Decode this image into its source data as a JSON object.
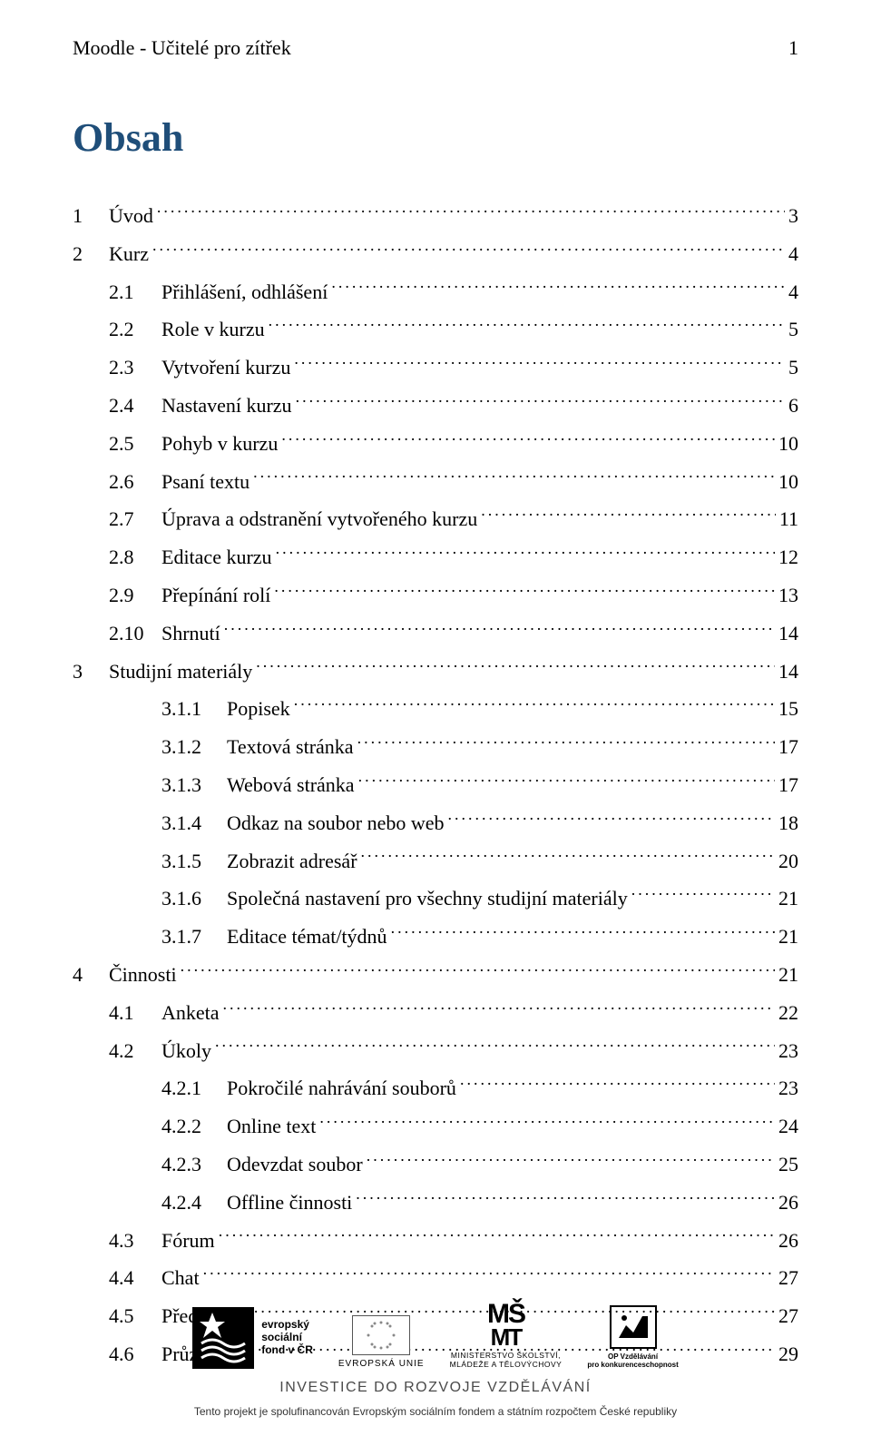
{
  "header": {
    "title": "Moodle - Učitelé pro zítřek",
    "page_number": "1"
  },
  "main_title": "Obsah",
  "toc": [
    {
      "level": 0,
      "num": "1",
      "label": "Úvod",
      "page": "3"
    },
    {
      "level": 0,
      "num": "2",
      "label": "Kurz",
      "page": "4"
    },
    {
      "level": 1,
      "num": "2.1",
      "label": "Přihlášení, odhlášení",
      "page": "4"
    },
    {
      "level": 1,
      "num": "2.2",
      "label": "Role v kurzu",
      "page": "5"
    },
    {
      "level": 1,
      "num": "2.3",
      "label": "Vytvoření kurzu",
      "page": "5"
    },
    {
      "level": 1,
      "num": "2.4",
      "label": "Nastavení kurzu",
      "page": "6"
    },
    {
      "level": 1,
      "num": "2.5",
      "label": "Pohyb v kurzu",
      "page": "10"
    },
    {
      "level": 1,
      "num": "2.6",
      "label": "Psaní textu",
      "page": "10"
    },
    {
      "level": 1,
      "num": "2.7",
      "label": "Úprava a odstranění vytvořeného kurzu",
      "page": "11"
    },
    {
      "level": 1,
      "num": "2.8",
      "label": "Editace kurzu",
      "page": "12"
    },
    {
      "level": 1,
      "num": "2.9",
      "label": "Přepínání rolí",
      "page": "13"
    },
    {
      "level": 1,
      "num": "2.10",
      "label": "Shrnutí",
      "page": "14"
    },
    {
      "level": 0,
      "num": "3",
      "label": "Studijní materiály",
      "page": "14"
    },
    {
      "level": 2,
      "num": "3.1.1",
      "label": "Popisek",
      "page": "15"
    },
    {
      "level": 2,
      "num": "3.1.2",
      "label": "Textová stránka",
      "page": "17"
    },
    {
      "level": 2,
      "num": "3.1.3",
      "label": "Webová stránka",
      "page": "17"
    },
    {
      "level": 2,
      "num": "3.1.4",
      "label": "Odkaz na soubor nebo web",
      "page": "18"
    },
    {
      "level": 2,
      "num": "3.1.5",
      "label": "Zobrazit adresář",
      "page": "20"
    },
    {
      "level": 2,
      "num": "3.1.6",
      "label": "Společná nastavení pro všechny studijní materiály",
      "page": "21"
    },
    {
      "level": 2,
      "num": "3.1.7",
      "label": "Editace témat/týdnů",
      "page": "21"
    },
    {
      "level": 0,
      "num": "4",
      "label": "Činnosti",
      "page": "21"
    },
    {
      "level": 1,
      "num": "4.1",
      "label": "Anketa",
      "page": "22"
    },
    {
      "level": 1,
      "num": "4.2",
      "label": "Úkoly",
      "page": "23"
    },
    {
      "level": 2,
      "num": "4.2.1",
      "label": "Pokročilé nahrávání souborů",
      "page": "23"
    },
    {
      "level": 2,
      "num": "4.2.2",
      "label": "Online text",
      "page": "24"
    },
    {
      "level": 2,
      "num": "4.2.3",
      "label": "Odevzdat soubor",
      "page": "25"
    },
    {
      "level": 2,
      "num": "4.2.4",
      "label": "Offline činnosti",
      "page": "26"
    },
    {
      "level": 1,
      "num": "4.3",
      "label": "Fórum",
      "page": "26"
    },
    {
      "level": 1,
      "num": "4.4",
      "label": "Chat",
      "page": "27"
    },
    {
      "level": 1,
      "num": "4.5",
      "label": "Přednáška",
      "page": "27"
    },
    {
      "level": 1,
      "num": "4.6",
      "label": "Průzkum",
      "page": "29"
    }
  ],
  "footer": {
    "esf": {
      "line1": "evropský",
      "line2": "sociální",
      "line3": "fond v ČR"
    },
    "eu_label": "EVROPSKÁ UNIE",
    "msmt": {
      "icon": "MŠ",
      "line1": "MINISTERSTVO ŠKOLSTVÍ,",
      "line2": "MLÁDEŽE A TĚLOVÝCHOVY"
    },
    "opvk": {
      "line1": "OP Vzdělávání",
      "line2": "pro konkurenceschopnost"
    },
    "invest_line": "INVESTICE DO ROZVOJE VZDĚLÁVÁNÍ",
    "funding_line": "Tento projekt je spolufinancován Evropským sociálním fondem a státním rozpočtem České republiky"
  },
  "colors": {
    "title_color": "#1f4e79",
    "text_color": "#000000",
    "background": "#ffffff"
  }
}
